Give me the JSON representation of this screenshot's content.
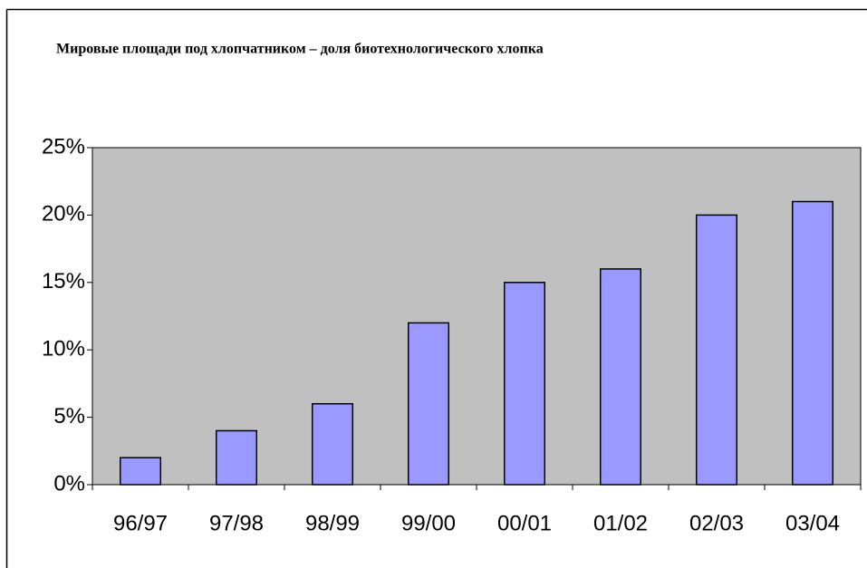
{
  "chart_data": {
    "type": "bar",
    "title": "Мировые площади под хлопчатником – доля биотехнологического хлопка",
    "categories": [
      "96/97",
      "97/98",
      "98/99",
      "99/00",
      "00/01",
      "01/02",
      "02/03",
      "03/04"
    ],
    "values": [
      2,
      4,
      6,
      12,
      15,
      16,
      20,
      21
    ],
    "color": "#9999ff",
    "plot_background": "#c0c0c0",
    "ylim": [
      0,
      25
    ],
    "yticks": [
      {
        "value": 0,
        "label": "0%"
      },
      {
        "value": 5,
        "label": "5%"
      },
      {
        "value": 10,
        "label": "10%"
      },
      {
        "value": 15,
        "label": "15%"
      },
      {
        "value": 20,
        "label": "20%"
      },
      {
        "value": 25,
        "label": "25%"
      }
    ],
    "grid": false
  }
}
